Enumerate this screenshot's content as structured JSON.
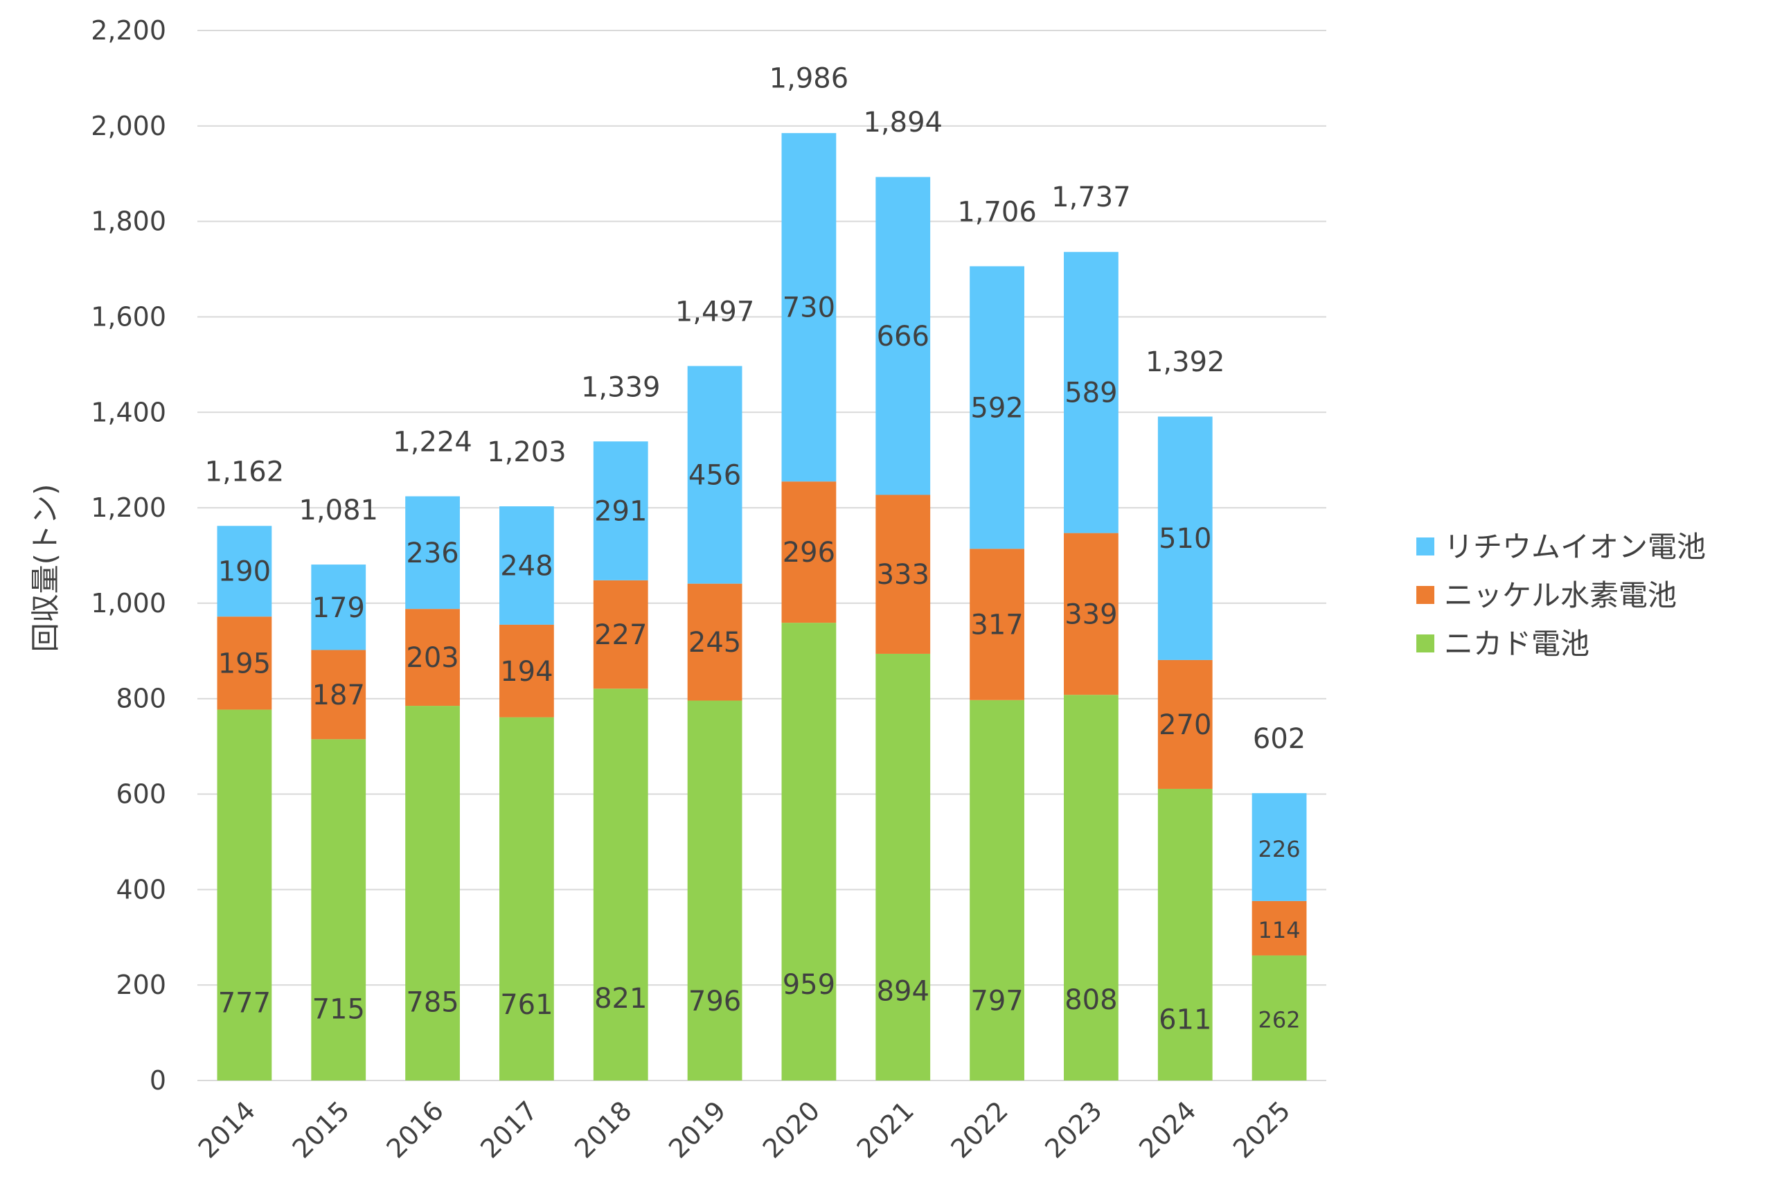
{
  "chart_data": {
    "type": "bar",
    "stacked": true,
    "categories": [
      "2014",
      "2015",
      "2016",
      "2017",
      "2018",
      "2019",
      "2020",
      "2021",
      "2022",
      "2023",
      "2024",
      "2025"
    ],
    "series": [
      {
        "name": "ニカド電池",
        "color": "#92d050",
        "values": [
          777,
          715,
          785,
          761,
          821,
          796,
          959,
          894,
          797,
          808,
          611,
          262
        ]
      },
      {
        "name": "ニッケル水素電池",
        "color": "#ed7d31",
        "values": [
          195,
          187,
          203,
          194,
          227,
          245,
          296,
          333,
          317,
          339,
          270,
          114
        ]
      },
      {
        "name": "リチウムイオン電池",
        "color": "#5ec8fc",
        "values": [
          190,
          179,
          236,
          248,
          291,
          456,
          730,
          666,
          592,
          589,
          510,
          226
        ]
      }
    ],
    "totals": [
      1162,
      1081,
      1224,
      1203,
      1339,
      1497,
      1986,
      1894,
      1706,
      1737,
      1392,
      602
    ],
    "ylabel": "回収量(トン)",
    "ylim": [
      0,
      2200
    ],
    "yticks": [
      0,
      200,
      400,
      600,
      800,
      1000,
      1200,
      1400,
      1600,
      1800,
      2000,
      2200
    ],
    "grid": true,
    "legend_position": "right",
    "legend_order": [
      "リチウムイオン電池",
      "ニッケル水素電池",
      "ニカド電池"
    ]
  }
}
